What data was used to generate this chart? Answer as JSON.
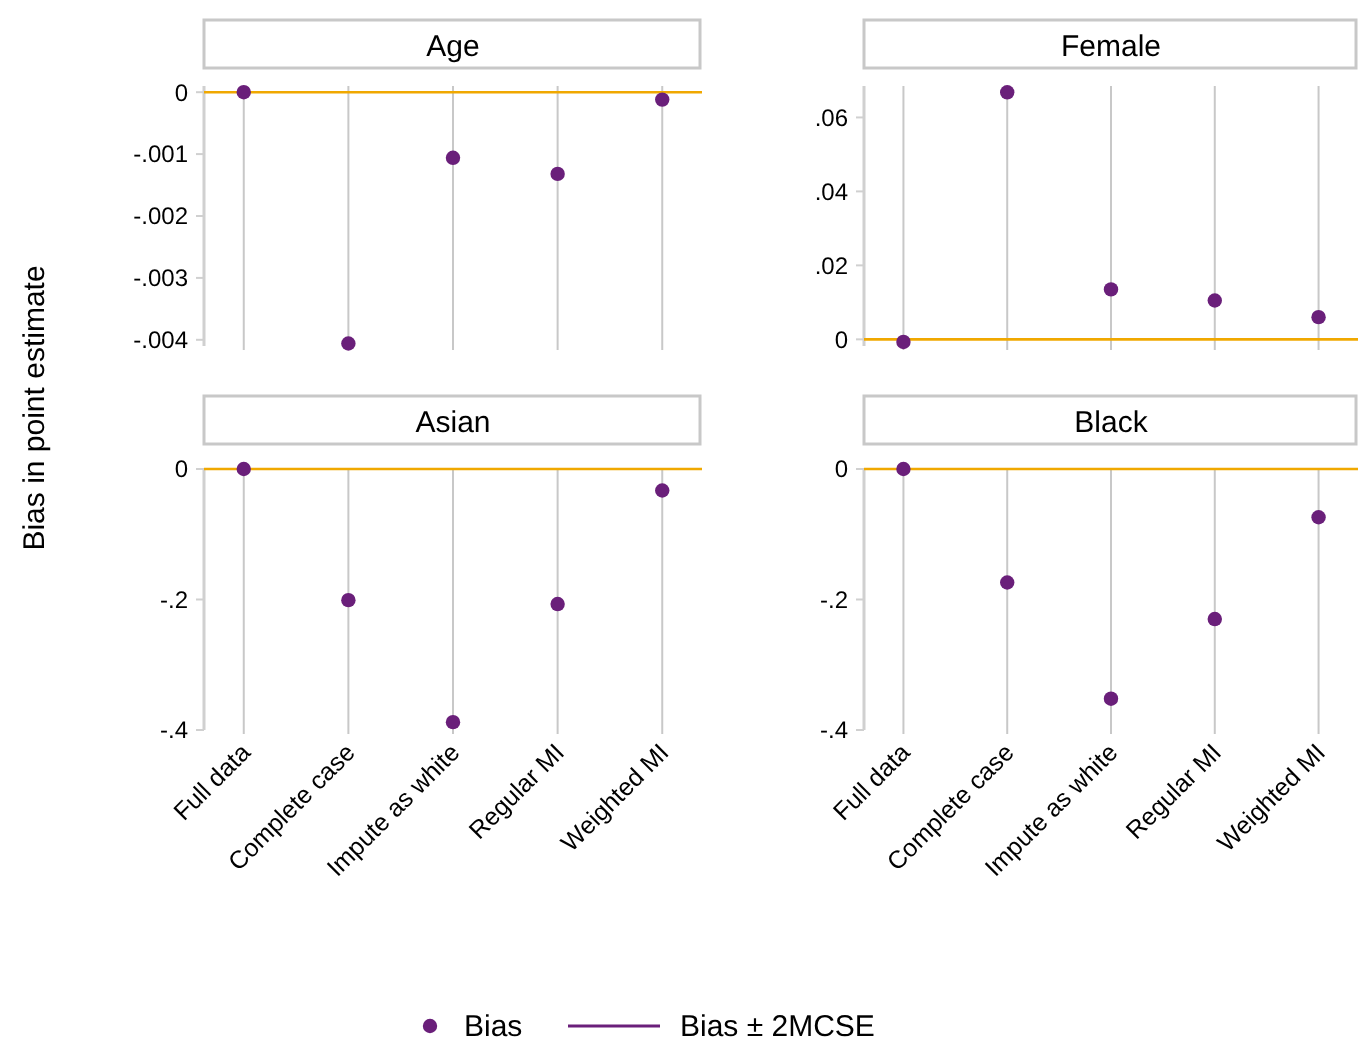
{
  "chart_data": [
    {
      "type": "scatter",
      "title": "Age",
      "ylabel": "Bias in point estimate",
      "series": [
        {
          "name": "Bias",
          "color": "#6a1f7a",
          "values": [
            0,
            -0.00406,
            -0.00106,
            -0.00132,
            -0.00012
          ]
        }
      ],
      "ylim": [
        -0.0041,
        0.0001
      ],
      "yticks": [
        {
          "value": 0,
          "label": "0"
        },
        {
          "value": -0.001,
          "label": "-.001"
        },
        {
          "value": -0.002,
          "label": "-.002"
        },
        {
          "value": -0.003,
          "label": "-.003"
        },
        {
          "value": -0.004,
          "label": "-.004"
        }
      ],
      "grid": "x",
      "marker": "circle",
      "ref_lines": [
        {
          "axis": "y",
          "value": 0,
          "color": "#f0a800"
        }
      ],
      "tick_labels": "y",
      "legend": "bottom",
      "annotations": [
        "Bias ± 2MCSE"
      ]
    },
    {
      "type": "scatter",
      "title": "Female",
      "series": [
        {
          "color": "#6a1f7a",
          "values": [
            -0.0007,
            0.0668,
            0.0135,
            0.0105,
            0.006
          ]
        }
      ],
      "ylim": [
        -0.0018,
        0.0685
      ],
      "yticks": [
        {
          "value": 0,
          "label": "0"
        },
        {
          "value": 0.02,
          "label": ".02"
        },
        {
          "value": 0.04,
          "label": ".04"
        },
        {
          "value": 0.06,
          "label": ".06"
        }
      ],
      "grid": "x",
      "marker": "circle",
      "ref_lines": [
        {
          "axis": "y",
          "value": 0,
          "color": "#f0a800"
        }
      ],
      "tick_labels": "y"
    },
    {
      "type": "scatter",
      "title": "Asian",
      "categories": [
        "Full data",
        "Complete case",
        "Impute as white",
        "Regular MI",
        "Weighted MI"
      ],
      "series": [
        {
          "color": "#6a1f7a",
          "values": [
            0,
            -0.201,
            -0.388,
            -0.207,
            -0.033
          ]
        }
      ],
      "ylim": [
        -0.4,
        0.0015
      ],
      "yticks": [
        {
          "value": 0,
          "label": "0"
        },
        {
          "value": -0.2,
          "label": "-.2"
        },
        {
          "value": -0.4,
          "label": "-.4"
        }
      ],
      "grid": "x",
      "marker": "circle",
      "ref_lines": [
        {
          "axis": "y",
          "value": 0,
          "color": "#f0a800"
        }
      ]
    },
    {
      "type": "scatter",
      "title": "Black",
      "categories": [
        "Full data",
        "Complete case",
        "Impute as white",
        "Regular MI",
        "Weighted MI"
      ],
      "series": [
        {
          "color": "#6a1f7a",
          "values": [
            0,
            -0.174,
            -0.352,
            -0.23,
            -0.074
          ]
        }
      ],
      "ylim": [
        -0.4,
        0.0015
      ],
      "yticks": [
        {
          "value": 0,
          "label": "0"
        },
        {
          "value": -0.2,
          "label": "-.2"
        },
        {
          "value": -0.4,
          "label": "-.4"
        }
      ],
      "grid": "x",
      "marker": "circle",
      "ref_lines": [
        {
          "axis": "y",
          "value": 0,
          "color": "#f0a800"
        }
      ]
    }
  ]
}
